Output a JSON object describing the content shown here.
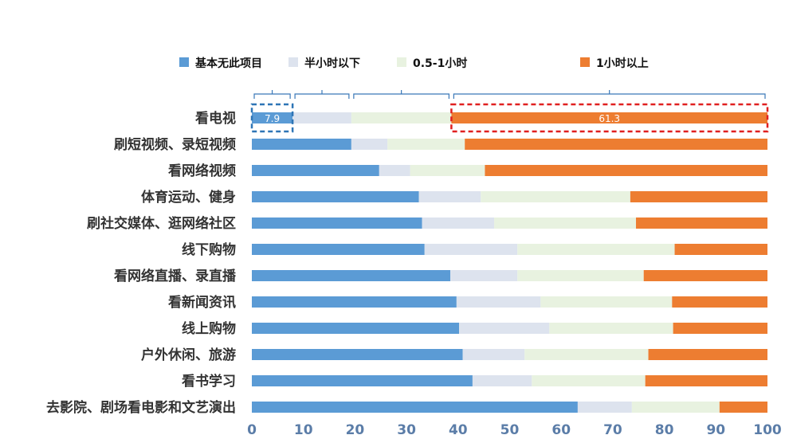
{
  "chart_data": {
    "type": "bar",
    "orientation": "horizontal",
    "stacked": true,
    "categories": [
      "看电视",
      "刷短视频、录短视频",
      "看网络视频",
      "体育运动、健身",
      "刷社交媒体、逛网络社区",
      "线下购物",
      "看网络直播、录直播",
      "看新闻资讯",
      "线上购物",
      "户外休闲、旅游",
      "看书学习",
      "去影院、剧场看电影和文艺演出"
    ],
    "series": [
      {
        "name": "基本无此项目",
        "color": "#5b9bd5",
        "values": [
          7.9,
          19.3,
          24.7,
          32.4,
          33.0,
          33.5,
          38.5,
          39.7,
          40.2,
          40.9,
          42.8,
          63.2
        ]
      },
      {
        "name": "半小时以下",
        "color": "#dde3ee",
        "values": [
          11.4,
          7.0,
          6.0,
          12.0,
          14.0,
          18.0,
          13.0,
          16.3,
          17.5,
          12.0,
          11.5,
          10.5
        ]
      },
      {
        "name": "0.5-1小时",
        "color": "#e8f2e0",
        "values": [
          19.4,
          15.0,
          14.5,
          29.0,
          27.5,
          30.5,
          24.5,
          25.5,
          24.0,
          24.0,
          22.0,
          17.0
        ]
      },
      {
        "name": "1小时以上",
        "color": "#ed7d31",
        "values": [
          61.3,
          58.7,
          54.8,
          26.6,
          25.5,
          18.0,
          24.0,
          18.5,
          18.3,
          23.1,
          23.7,
          9.3
        ]
      }
    ],
    "xlim": [
      0,
      100
    ],
    "xticks": [
      "0",
      "10",
      "20",
      "30",
      "40",
      "50",
      "60",
      "70",
      "80",
      "90",
      "100"
    ],
    "legend_position": "top",
    "annotations": [
      {
        "category": "看电视",
        "series": "基本无此项目",
        "label": "7.9",
        "highlight_color": "#2e75b6"
      },
      {
        "category": "看电视",
        "series": "1小时以上",
        "label": "61.3",
        "highlight_color": "#e02020"
      }
    ]
  }
}
